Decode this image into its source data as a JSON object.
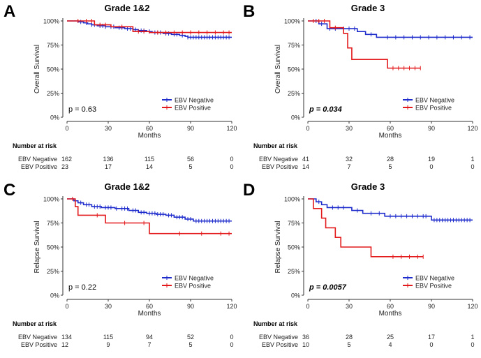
{
  "colors": {
    "negative": "#1f2ccc",
    "positive": "#e31a1c",
    "axis": "#333333",
    "text": "#222222"
  },
  "risk_header": "Number at risk",
  "chart_data": [
    {
      "id": "A",
      "type": "line",
      "title": "Grade 1&2",
      "ylabel": "Overall Survival",
      "xlabel": "Months",
      "xlim": [
        0,
        120
      ],
      "ylim": [
        0,
        100
      ],
      "xticks": [
        0,
        30,
        60,
        90,
        120
      ],
      "xtick_labels": [
        "0",
        "30",
        "60",
        "90",
        "120"
      ],
      "yticks": [
        0,
        25,
        50,
        75,
        100
      ],
      "ytick_labels": [
        "0%",
        "25%",
        "50%",
        "75%",
        "100%"
      ],
      "pvalue": "p = 0.63",
      "pvalue_bold": false,
      "legend": [
        "EBV Negative",
        "EBV Positive"
      ],
      "legend_position": "bottom-right",
      "series": [
        {
          "name": "EBV Negative",
          "color": "#1f2ccc",
          "points": [
            [
              0,
              100
            ],
            [
              8,
              99
            ],
            [
              12,
              98
            ],
            [
              15,
              97
            ],
            [
              18,
              96
            ],
            [
              22,
              95
            ],
            [
              28,
              94
            ],
            [
              35,
              93
            ],
            [
              42,
              92
            ],
            [
              48,
              91
            ],
            [
              52,
              90
            ],
            [
              58,
              89
            ],
            [
              62,
              88
            ],
            [
              70,
              87
            ],
            [
              76,
              86
            ],
            [
              82,
              85
            ],
            [
              86,
              84
            ],
            [
              88,
              83
            ],
            [
              120,
              83
            ]
          ],
          "censor": [
            10,
            14,
            18,
            20,
            24,
            26,
            28,
            32,
            34,
            38,
            40,
            44,
            46,
            50,
            54,
            56,
            60,
            64,
            66,
            68,
            72,
            74,
            78,
            80,
            84,
            88,
            90,
            92,
            94,
            96,
            98,
            100,
            102,
            104,
            106,
            108,
            110,
            112,
            114,
            116,
            118
          ]
        },
        {
          "name": "EBV Positive",
          "color": "#e31a1c",
          "points": [
            [
              0,
              100
            ],
            [
              20,
              100
            ],
            [
              20,
              96
            ],
            [
              32,
              96
            ],
            [
              32,
              94
            ],
            [
              48,
              94
            ],
            [
              48,
              89
            ],
            [
              60,
              89
            ],
            [
              60,
              88
            ],
            [
              120,
              88
            ]
          ],
          "censor": [
            8,
            14,
            18,
            24,
            28,
            40,
            52,
            56,
            66,
            72,
            78,
            84,
            90,
            96,
            102,
            108,
            114,
            118
          ]
        }
      ],
      "risk": {
        "rows": [
          {
            "label": "EBV Negative",
            "values": [
              "162",
              "136",
              "115",
              "56",
              "0"
            ]
          },
          {
            "label": "EBV Positive",
            "values": [
              "23",
              "17",
              "14",
              "5",
              "0"
            ]
          }
        ]
      }
    },
    {
      "id": "B",
      "type": "line",
      "title": "Grade 3",
      "ylabel": "Overall Survival",
      "xlabel": "Months",
      "xlim": [
        0,
        120
      ],
      "ylim": [
        0,
        100
      ],
      "xticks": [
        0,
        30,
        60,
        90,
        120
      ],
      "xtick_labels": [
        "0",
        "30",
        "60",
        "90",
        "120"
      ],
      "yticks": [
        0,
        25,
        50,
        75,
        100
      ],
      "ytick_labels": [
        "0%",
        "25%",
        "50%",
        "75%",
        "100%"
      ],
      "pvalue": "p = 0.034",
      "pvalue_bold": true,
      "legend": [
        "EBV Negative",
        "EBV Positive"
      ],
      "legend_position": "bottom-right",
      "series": [
        {
          "name": "EBV Negative",
          "color": "#1f2ccc",
          "points": [
            [
              0,
              100
            ],
            [
              8,
              100
            ],
            [
              8,
              97
            ],
            [
              14,
              97
            ],
            [
              14,
              92
            ],
            [
              36,
              92
            ],
            [
              36,
              89
            ],
            [
              42,
              89
            ],
            [
              42,
              86
            ],
            [
              50,
              86
            ],
            [
              50,
              83
            ],
            [
              120,
              83
            ]
          ],
          "censor": [
            6,
            10,
            16,
            20,
            26,
            30,
            34,
            46,
            58,
            64,
            70,
            76,
            82,
            88,
            94,
            100,
            106,
            112,
            118
          ]
        },
        {
          "name": "EBV Positive",
          "color": "#e31a1c",
          "points": [
            [
              0,
              100
            ],
            [
              16,
              100
            ],
            [
              16,
              93
            ],
            [
              26,
              93
            ],
            [
              26,
              87
            ],
            [
              29,
              87
            ],
            [
              29,
              72
            ],
            [
              32,
              72
            ],
            [
              32,
              60
            ],
            [
              58,
              60
            ],
            [
              58,
              51
            ],
            [
              82,
              51
            ]
          ],
          "censor": [
            4,
            8,
            12,
            20,
            62,
            66,
            70,
            74,
            78,
            82
          ]
        }
      ],
      "risk": {
        "rows": [
          {
            "label": "EBV Negative",
            "values": [
              "41",
              "32",
              "28",
              "19",
              "1"
            ]
          },
          {
            "label": "EBV Positive",
            "values": [
              "14",
              "7",
              "5",
              "0",
              "0"
            ]
          }
        ]
      }
    },
    {
      "id": "C",
      "type": "line",
      "title": "Grade 1&2",
      "ylabel": "Relapse Survival",
      "xlabel": "Months",
      "xlim": [
        0,
        120
      ],
      "ylim": [
        0,
        100
      ],
      "xticks": [
        0,
        30,
        60,
        90,
        120
      ],
      "xtick_labels": [
        "0",
        "30",
        "60",
        "90",
        "120"
      ],
      "yticks": [
        0,
        25,
        50,
        75,
        100
      ],
      "ytick_labels": [
        "0%",
        "25%",
        "50%",
        "75%",
        "100%"
      ],
      "pvalue": "p = 0.22",
      "pvalue_bold": false,
      "legend": [
        "EBV Negative",
        "EBV Positive"
      ],
      "legend_position": "bottom-right",
      "series": [
        {
          "name": "EBV Negative",
          "color": "#1f2ccc",
          "points": [
            [
              0,
              100
            ],
            [
              5,
              98
            ],
            [
              8,
              96
            ],
            [
              12,
              94
            ],
            [
              18,
              92
            ],
            [
              25,
              91
            ],
            [
              35,
              90
            ],
            [
              45,
              88
            ],
            [
              52,
              86
            ],
            [
              58,
              85
            ],
            [
              65,
              84
            ],
            [
              72,
              83
            ],
            [
              78,
              81
            ],
            [
              86,
              79
            ],
            [
              92,
              77
            ],
            [
              120,
              77
            ]
          ],
          "censor": [
            10,
            14,
            16,
            20,
            22,
            24,
            28,
            30,
            32,
            36,
            40,
            42,
            44,
            48,
            50,
            54,
            56,
            60,
            62,
            64,
            66,
            68,
            70,
            74,
            76,
            80,
            82,
            84,
            88,
            90,
            94,
            96,
            98,
            100,
            102,
            104,
            106,
            108,
            110,
            112,
            114,
            116,
            118
          ]
        },
        {
          "name": "EBV Positive",
          "color": "#e31a1c",
          "points": [
            [
              0,
              100
            ],
            [
              6,
              100
            ],
            [
              6,
              92
            ],
            [
              8,
              92
            ],
            [
              8,
              83
            ],
            [
              28,
              83
            ],
            [
              28,
              75
            ],
            [
              60,
              75
            ],
            [
              60,
              64
            ],
            [
              120,
              64
            ]
          ],
          "censor": [
            4,
            22,
            42,
            56,
            82,
            98,
            112,
            118
          ]
        }
      ],
      "risk": {
        "rows": [
          {
            "label": "EBV Negative",
            "values": [
              "134",
              "115",
              "94",
              "52",
              "0"
            ]
          },
          {
            "label": "EBV Positive",
            "values": [
              "12",
              "9",
              "7",
              "5",
              "0"
            ]
          }
        ]
      }
    },
    {
      "id": "D",
      "type": "line",
      "title": "Grade 3",
      "ylabel": "Relapse Survival",
      "xlabel": "Months",
      "xlim": [
        0,
        120
      ],
      "ylim": [
        0,
        100
      ],
      "xticks": [
        0,
        30,
        60,
        90,
        120
      ],
      "xtick_labels": [
        "0",
        "30",
        "60",
        "90",
        "120"
      ],
      "yticks": [
        0,
        25,
        50,
        75,
        100
      ],
      "ytick_labels": [
        "0%",
        "25%",
        "50%",
        "75%",
        "100%"
      ],
      "pvalue": "p = 0.0057",
      "pvalue_bold": true,
      "legend": [
        "EBV Negative",
        "EBV Positive"
      ],
      "legend_position": "bottom-right",
      "series": [
        {
          "name": "EBV Negative",
          "color": "#1f2ccc",
          "points": [
            [
              0,
              100
            ],
            [
              6,
              100
            ],
            [
              6,
              97
            ],
            [
              10,
              97
            ],
            [
              10,
              94
            ],
            [
              14,
              94
            ],
            [
              14,
              91
            ],
            [
              32,
              91
            ],
            [
              32,
              88
            ],
            [
              40,
              88
            ],
            [
              40,
              85
            ],
            [
              56,
              85
            ],
            [
              56,
              82
            ],
            [
              90,
              82
            ],
            [
              90,
              78
            ],
            [
              120,
              78
            ]
          ],
          "censor": [
            8,
            18,
            22,
            26,
            36,
            46,
            52,
            60,
            64,
            68,
            72,
            76,
            80,
            84,
            86,
            92,
            94,
            96,
            98,
            100,
            102,
            104,
            106,
            108,
            110,
            112,
            114,
            116,
            118
          ]
        },
        {
          "name": "EBV Positive",
          "color": "#e31a1c",
          "points": [
            [
              0,
              100
            ],
            [
              4,
              100
            ],
            [
              4,
              90
            ],
            [
              10,
              90
            ],
            [
              10,
              80
            ],
            [
              13,
              80
            ],
            [
              13,
              70
            ],
            [
              20,
              70
            ],
            [
              20,
              60
            ],
            [
              24,
              60
            ],
            [
              24,
              50
            ],
            [
              46,
              50
            ],
            [
              46,
              40
            ],
            [
              84,
              40
            ]
          ],
          "censor": [
            62,
            68,
            74,
            80,
            84
          ]
        }
      ],
      "risk": {
        "rows": [
          {
            "label": "EBV Negative",
            "values": [
              "36",
              "28",
              "25",
              "17",
              "1"
            ]
          },
          {
            "label": "EBV Positive",
            "values": [
              "10",
              "5",
              "4",
              "0",
              "0"
            ]
          }
        ]
      }
    }
  ]
}
